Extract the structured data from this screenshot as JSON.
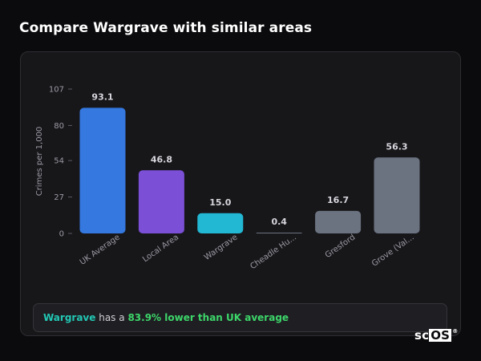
{
  "page": {
    "title": "Compare Wargrave with similar areas"
  },
  "summary": {
    "area": "Wargrave",
    "mid_text": "has a",
    "comparison": "83.9% lower than UK average"
  },
  "logo": {
    "text_a": "sc",
    "text_b": "OS",
    "mark": "®"
  },
  "chart_data": {
    "type": "bar",
    "ylabel": "Crimes per 1,000",
    "xlabel": "",
    "ylim": [
      0,
      107
    ],
    "yticks": [
      0,
      27,
      54,
      80,
      107
    ],
    "grid": false,
    "categories": [
      "UK Average",
      "Local Area",
      "Wargrave",
      "Cheadle Hu...",
      "Gresford",
      "Grove (Val..."
    ],
    "values": [
      93.1,
      46.8,
      15.0,
      0.4,
      16.7,
      56.3
    ],
    "value_labels": [
      "93.1",
      "46.8",
      "15.0",
      "0.4",
      "16.7",
      "56.3"
    ],
    "colors": [
      "#3478e0",
      "#7b4fd6",
      "#22b8d4",
      "#6b7280",
      "#6b7280",
      "#6b7280"
    ]
  }
}
